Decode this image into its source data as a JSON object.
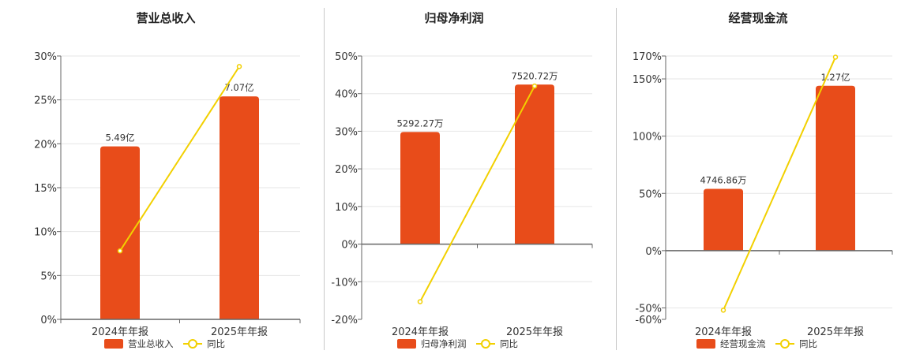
{
  "colors": {
    "bar": "#e84c1a",
    "line": "#f2d000",
    "grid": "#e6e6e6",
    "axis": "#666666"
  },
  "chart_data": [
    {
      "type": "bar",
      "title": "营业总收入",
      "categories": [
        "2024年年报",
        "2025年年报"
      ],
      "series": [
        {
          "name": "营业总收入",
          "type": "bar",
          "values": [
            19.7,
            25.4
          ],
          "labels": [
            "5.49亿",
            "7.07亿"
          ]
        },
        {
          "name": "同比",
          "type": "line",
          "values": [
            7.8,
            28.8
          ]
        }
      ],
      "yticks": [
        "30%",
        "25%",
        "20%",
        "15%",
        "10%",
        "5%",
        "0%"
      ],
      "ylim": [
        0,
        30
      ],
      "ytick_values": [
        30,
        25,
        20,
        15,
        10,
        5,
        0
      ],
      "grid": true,
      "legend": "bottom"
    },
    {
      "type": "bar",
      "title": "归母净利润",
      "categories": [
        "2024年年报",
        "2025年年报"
      ],
      "series": [
        {
          "name": "归母净利润",
          "type": "bar",
          "values": [
            29.8,
            42.4
          ],
          "labels": [
            "5292.27万",
            "7520.72万"
          ]
        },
        {
          "name": "同比",
          "type": "line",
          "values": [
            -15.3,
            42.0
          ]
        }
      ],
      "yticks": [
        "50%",
        "40%",
        "30%",
        "20%",
        "10%",
        "0%",
        "-10%",
        "-20%"
      ],
      "ylim": [
        -20,
        50
      ],
      "ytick_values": [
        50,
        40,
        30,
        20,
        10,
        0,
        -10,
        -20
      ],
      "grid": true,
      "legend": "bottom"
    },
    {
      "type": "bar",
      "title": "经营现金流",
      "categories": [
        "2024年年报",
        "2025年年报"
      ],
      "series": [
        {
          "name": "经营现金流",
          "type": "bar",
          "values": [
            54,
            144
          ],
          "labels": [
            "4746.86万",
            "1.27亿"
          ]
        },
        {
          "name": "同比",
          "type": "line",
          "values": [
            -52,
            169
          ]
        }
      ],
      "yticks": [
        "170%",
        "150%",
        "100%",
        "50%",
        "0%",
        "-50%",
        "-60%"
      ],
      "ylim": [
        -60,
        170
      ],
      "ytick_values": [
        170,
        150,
        100,
        50,
        0,
        -50,
        -60
      ],
      "grid": true,
      "legend": "bottom"
    }
  ]
}
